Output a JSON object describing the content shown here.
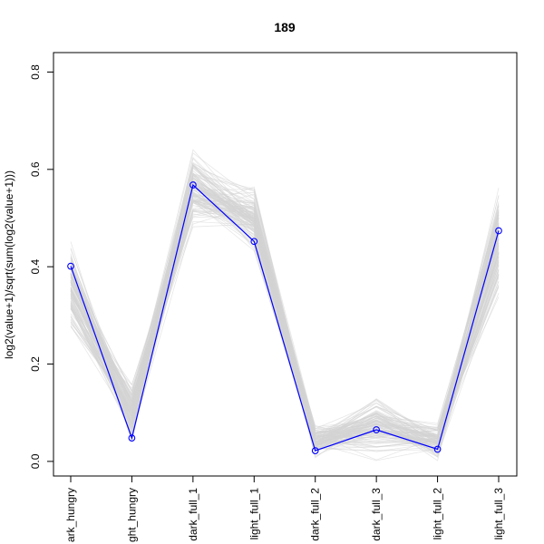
{
  "chart_data": {
    "type": "line",
    "title": "189",
    "xlabel": "",
    "ylabel": "log2(value+1)/sqrt(sum(log2(value+1)))",
    "categories": [
      "dark_hungry",
      "light_hungry",
      "dark_full_1",
      "light_full_1",
      "dark_full_2",
      "dark_full_3",
      "light_full_2",
      "light_full_3"
    ],
    "tick_labels": [
      "ark_hungry",
      "ght_hungry",
      "dark_full_1",
      "light_full_1",
      "dark_full_2",
      "dark_full_3",
      "light_full_2",
      "light_full_3"
    ],
    "y_ticks": [
      "0.0",
      "0.2",
      "0.4",
      "0.6",
      "0.8"
    ],
    "ylim": [
      -0.03,
      0.84
    ],
    "grid": false,
    "highlight_series": {
      "values": [
        0.401,
        0.048,
        0.568,
        0.452,
        0.022,
        0.065,
        0.025,
        0.474
      ],
      "color": "#0000ff",
      "marker": "open-circle"
    },
    "background_series": {
      "color": "#d3d3d3",
      "note_count": 120,
      "profiles": [
        {
          "mean": [
            0.36,
            0.1,
            0.56,
            0.5,
            0.04,
            0.07,
            0.04,
            0.45
          ],
          "spread": [
            0.12,
            0.08,
            0.09,
            0.08,
            0.04,
            0.08,
            0.05,
            0.13
          ]
        }
      ]
    }
  },
  "colors": {
    "highlight": "#0000ff",
    "background_lines": "#d3d3d3",
    "axis": "#000000"
  }
}
